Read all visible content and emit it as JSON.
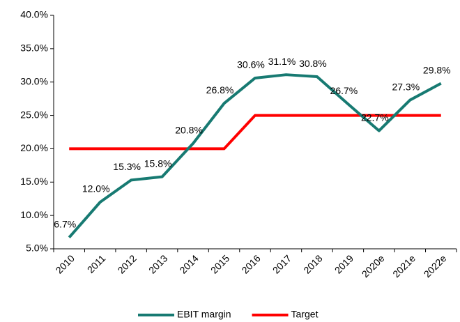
{
  "chart_data": {
    "type": "line",
    "categories": [
      "2010",
      "2011",
      "2012",
      "2013",
      "2014",
      "2015",
      "2016",
      "2017",
      "2018",
      "2019",
      "2020e",
      "2021e",
      "2022e"
    ],
    "series": [
      {
        "name": "EBIT margin",
        "color": "#177a72",
        "values": [
          6.7,
          12.0,
          15.3,
          15.8,
          20.8,
          26.8,
          30.6,
          31.1,
          30.8,
          26.7,
          22.7,
          27.3,
          29.8
        ],
        "value_labels": [
          "6.7%",
          "12.0%",
          "15.3%",
          "15.8%",
          "20.8%",
          "26.8%",
          "30.6%",
          "31.1%",
          "30.8%",
          "26.7%",
          "22.7%",
          "27.3%",
          "29.8%"
        ]
      },
      {
        "name": "Target",
        "color": "#ff0000",
        "values": [
          20,
          20,
          20,
          20,
          20,
          20,
          25,
          25,
          25,
          25,
          25,
          25,
          25
        ]
      }
    ],
    "ylim": [
      5,
      40
    ],
    "yticks": [
      {
        "value": 5,
        "label": "5.0%"
      },
      {
        "value": 10,
        "label": "10.0%"
      },
      {
        "value": 15,
        "label": "15.0%"
      },
      {
        "value": 20,
        "label": "20.0%"
      },
      {
        "value": 25,
        "label": "25.0%"
      },
      {
        "value": 30,
        "label": "30.0%"
      },
      {
        "value": 35,
        "label": "35.0%"
      },
      {
        "value": 40,
        "label": "40.0%"
      }
    ],
    "grid": false,
    "legend": "bottom"
  }
}
